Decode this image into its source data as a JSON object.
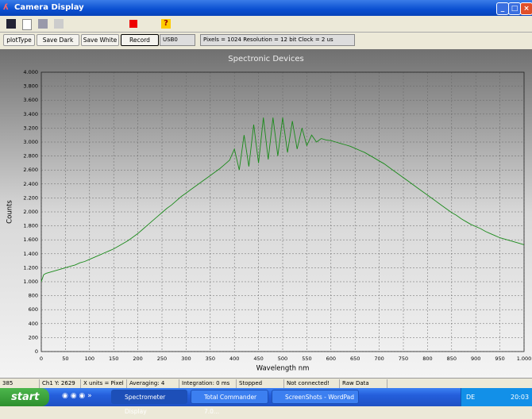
{
  "window": {
    "title": "Camera Display"
  },
  "buttons": [
    "plotType",
    "Save Dark",
    "Save White",
    "Record"
  ],
  "device": "USB0",
  "info": "Pixels = 1024  Resolution = 12 bit  Clock = 2 us",
  "status": [
    "385",
    "Ch1 Y:  2629",
    "X units = Pixel",
    "Averaging: 4",
    "Integration: 0 ms",
    "Stopped",
    "Not connected!",
    "Raw Data"
  ],
  "taskbar": {
    "start": "start",
    "items": [
      "Spectrometer Display",
      "Total Commander 7.0...",
      "ScreenShots - WordPad"
    ],
    "lang": "DE",
    "clock": "20:03"
  },
  "chart_data": {
    "type": "line",
    "title": "Spectronic Devices",
    "x_label": "Wavelength nm",
    "y_label": "Counts",
    "color": "#1a8a1a",
    "grid": true,
    "x": [
      0,
      5,
      10,
      20,
      30,
      40,
      50,
      60,
      70,
      80,
      90,
      100,
      110,
      120,
      130,
      140,
      150,
      160,
      170,
      180,
      190,
      200,
      210,
      220,
      230,
      240,
      250,
      260,
      270,
      280,
      290,
      300,
      310,
      320,
      330,
      340,
      350,
      360,
      370,
      380,
      390,
      400,
      410,
      420,
      430,
      440,
      450,
      460,
      470,
      480,
      490,
      500,
      510,
      520,
      530,
      540,
      550,
      560,
      570,
      580,
      590,
      600,
      610,
      620,
      630,
      640,
      650,
      660,
      670,
      680,
      690,
      700,
      710,
      720,
      730,
      740,
      750,
      760,
      770,
      780,
      790,
      800,
      810,
      820,
      830,
      840,
      850,
      860,
      870,
      880,
      890,
      900,
      910,
      920,
      930,
      940,
      950,
      960,
      970,
      980,
      990,
      1000
    ],
    "values": [
      1000,
      1100,
      1120,
      1140,
      1160,
      1180,
      1200,
      1220,
      1240,
      1270,
      1290,
      1320,
      1350,
      1380,
      1410,
      1440,
      1470,
      1510,
      1550,
      1590,
      1640,
      1690,
      1750,
      1810,
      1870,
      1930,
      1990,
      2050,
      2100,
      2160,
      2220,
      2270,
      2320,
      2370,
      2420,
      2470,
      2520,
      2570,
      2620,
      2680,
      2740,
      2900,
      2600,
      3100,
      2650,
      3250,
      2700,
      3350,
      2750,
      3350,
      2800,
      3350,
      2850,
      3300,
      2900,
      3200,
      2950,
      3100,
      3000,
      3050,
      3030,
      3020,
      3000,
      2980,
      2960,
      2940,
      2910,
      2880,
      2850,
      2810,
      2770,
      2730,
      2690,
      2640,
      2590,
      2540,
      2490,
      2440,
      2390,
      2340,
      2290,
      2240,
      2190,
      2140,
      2090,
      2040,
      1990,
      1950,
      1900,
      1860,
      1820,
      1790,
      1760,
      1720,
      1690,
      1660,
      1630,
      1610,
      1590,
      1570,
      1550,
      1530
    ],
    "xlim": [
      0,
      1000
    ],
    "xticks": [
      0,
      50,
      100,
      150,
      200,
      250,
      300,
      350,
      400,
      450,
      500,
      550,
      600,
      650,
      700,
      750,
      800,
      850,
      900,
      950,
      {
        "value": 1000,
        "label": "1.000"
      }
    ],
    "ylim": [
      0,
      4000
    ],
    "yticks": [
      0,
      200,
      400,
      600,
      800,
      {
        "value": 1000,
        "label": "1.000"
      },
      {
        "value": 1200,
        "label": "1.200"
      },
      {
        "value": 1400,
        "label": "1.400"
      },
      {
        "value": 1600,
        "label": "1.600"
      },
      {
        "value": 1800,
        "label": "1.800"
      },
      {
        "value": 2000,
        "label": "2.000"
      },
      {
        "value": 2200,
        "label": "2.200"
      },
      {
        "value": 2400,
        "label": "2.400"
      },
      {
        "value": 2600,
        "label": "2.600"
      },
      {
        "value": 2800,
        "label": "2.800"
      },
      {
        "value": 3000,
        "label": "3.000"
      },
      {
        "value": 3200,
        "label": "3.200"
      },
      {
        "value": 3400,
        "label": "3.400"
      },
      {
        "value": 3600,
        "label": "3.600"
      },
      {
        "value": 3800,
        "label": "3.800"
      },
      {
        "value": 4000,
        "label": "4.000"
      }
    ]
  }
}
